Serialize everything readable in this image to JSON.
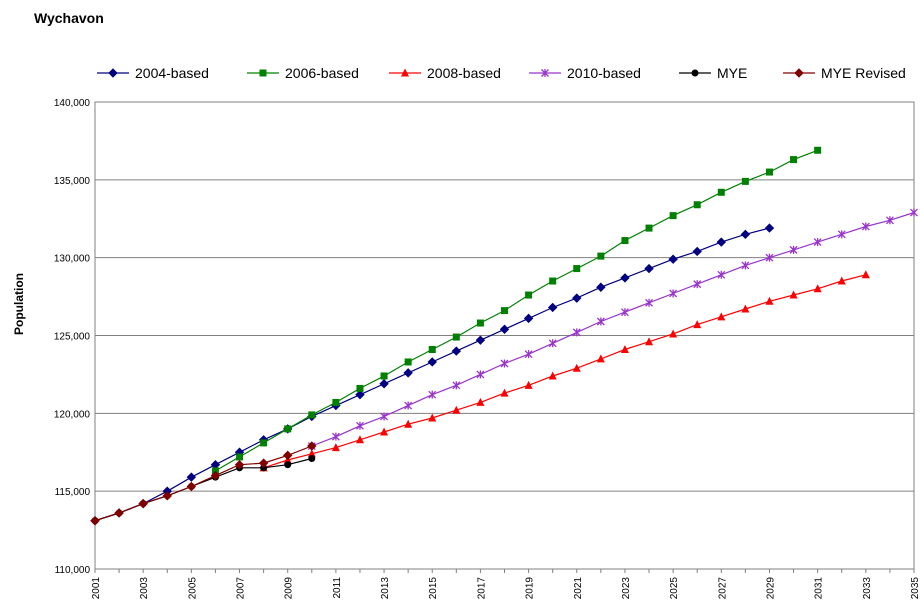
{
  "title": "Wychavon",
  "chart_data": {
    "type": "line",
    "title": "Wychavon",
    "xlabel": "",
    "ylabel": "Population",
    "ylim": [
      110000,
      140000
    ],
    "yticks": [
      110000,
      115000,
      120000,
      125000,
      130000,
      135000,
      140000
    ],
    "ytick_labels": [
      "110,000",
      "115,000",
      "120,000",
      "125,000",
      "130,000",
      "135,000",
      "140,000"
    ],
    "xlim": [
      2001,
      2035
    ],
    "xticks": [
      2001,
      2003,
      2005,
      2007,
      2009,
      2011,
      2013,
      2015,
      2017,
      2019,
      2021,
      2023,
      2025,
      2027,
      2029,
      2031,
      2033,
      2035
    ],
    "grid": "horizontal",
    "legend_position": "top",
    "series": [
      {
        "name": "2004-based",
        "color": "#000080",
        "marker": "diamond",
        "x": [
          2001,
          2002,
          2003,
          2004,
          2005,
          2006,
          2007,
          2008,
          2009,
          2010,
          2011,
          2012,
          2013,
          2014,
          2015,
          2016,
          2017,
          2018,
          2019,
          2020,
          2021,
          2022,
          2023,
          2024,
          2025,
          2026,
          2027,
          2028,
          2029
        ],
        "y": [
          113100,
          113600,
          114200,
          115000,
          115900,
          116700,
          117500,
          118300,
          119000,
          119800,
          120500,
          121200,
          121900,
          122600,
          123300,
          124000,
          124700,
          125400,
          126100,
          126800,
          127400,
          128100,
          128700,
          129300,
          129900,
          130400,
          131000,
          131500,
          131900
        ]
      },
      {
        "name": "2006-based",
        "color": "#008000",
        "marker": "square",
        "x": [
          2006,
          2007,
          2008,
          2009,
          2010,
          2011,
          2012,
          2013,
          2014,
          2015,
          2016,
          2017,
          2018,
          2019,
          2020,
          2021,
          2022,
          2023,
          2024,
          2025,
          2026,
          2027,
          2028,
          2029,
          2030,
          2031
        ],
        "y": [
          116300,
          117200,
          118100,
          119000,
          119900,
          120700,
          121600,
          122400,
          123300,
          124100,
          124900,
          125800,
          126600,
          127600,
          128500,
          129300,
          130100,
          131100,
          131900,
          132700,
          133400,
          134200,
          134900,
          135500,
          136300,
          136900
        ]
      },
      {
        "name": "2008-based",
        "color": "#ff0000",
        "marker": "triangle",
        "x": [
          2008,
          2009,
          2010,
          2011,
          2012,
          2013,
          2014,
          2015,
          2016,
          2017,
          2018,
          2019,
          2020,
          2021,
          2022,
          2023,
          2024,
          2025,
          2026,
          2027,
          2028,
          2029,
          2030,
          2031,
          2032,
          2033
        ],
        "y": [
          116500,
          117000,
          117400,
          117800,
          118300,
          118800,
          119300,
          119700,
          120200,
          120700,
          121300,
          121800,
          122400,
          122900,
          123500,
          124100,
          124600,
          125100,
          125700,
          126200,
          126700,
          127200,
          127600,
          128000,
          128500,
          128900
        ]
      },
      {
        "name": "2010-based",
        "color": "#9933cc",
        "marker": "star",
        "x": [
          2010,
          2011,
          2012,
          2013,
          2014,
          2015,
          2016,
          2017,
          2018,
          2019,
          2020,
          2021,
          2022,
          2023,
          2024,
          2025,
          2026,
          2027,
          2028,
          2029,
          2030,
          2031,
          2032,
          2033,
          2034,
          2035
        ],
        "y": [
          117900,
          118500,
          119200,
          119800,
          120500,
          121200,
          121800,
          122500,
          123200,
          123800,
          124500,
          125200,
          125900,
          126500,
          127100,
          127700,
          128300,
          128900,
          129500,
          130000,
          130500,
          131000,
          131500,
          132000,
          132400,
          132900
        ]
      },
      {
        "name": "MYE",
        "color": "#000000",
        "marker": "circle",
        "x": [
          2001,
          2002,
          2003,
          2004,
          2005,
          2006,
          2007,
          2008,
          2009,
          2010
        ],
        "y": [
          113100,
          113600,
          114200,
          114700,
          115300,
          115900,
          116500,
          116500,
          116700,
          117100
        ]
      },
      {
        "name": "MYE Revised",
        "color": "#800000",
        "marker": "diamond",
        "x": [
          2001,
          2002,
          2003,
          2004,
          2005,
          2006,
          2007,
          2008,
          2009,
          2010
        ],
        "y": [
          113100,
          113600,
          114200,
          114700,
          115300,
          116000,
          116700,
          116800,
          117300,
          117900
        ]
      }
    ]
  }
}
